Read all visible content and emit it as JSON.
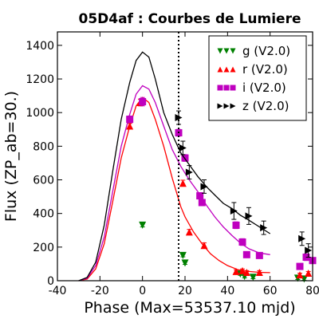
{
  "chart_data": {
    "type": "scatter",
    "title": "05D4af : Courbes de Lumiere",
    "xlabel": "Phase (Max=53537.10 mjd)",
    "ylabel": "Flux (ZP_ab=30.)",
    "xlim": [
      -40,
      80
    ],
    "ylim": [
      0,
      1480
    ],
    "xticks": [
      -40,
      -20,
      0,
      20,
      40,
      60,
      80
    ],
    "yticks": [
      0,
      200,
      400,
      600,
      800,
      1000,
      1200,
      1400
    ],
    "grid": false,
    "legend_position": "top-right",
    "vertical_marker_x": 17,
    "series": [
      {
        "name": "g (V2.0)",
        "color": "#008000",
        "marker": "triangle-down",
        "points": [
          [
            0,
            330,
            10
          ],
          [
            19,
            150,
            8
          ],
          [
            20,
            105,
            8
          ],
          [
            46,
            40,
            8
          ],
          [
            48,
            25,
            8
          ],
          [
            52,
            20,
            8
          ],
          [
            73,
            15,
            8
          ],
          [
            76,
            10,
            8
          ]
        ],
        "curve": []
      },
      {
        "name": "r (V2.0)",
        "color": "#ff0000",
        "marker": "triangle-up",
        "points": [
          [
            -6,
            920,
            15
          ],
          [
            -1,
            1060,
            20
          ],
          [
            19,
            580,
            18
          ],
          [
            22,
            290,
            15
          ],
          [
            29,
            210,
            15
          ],
          [
            44,
            55,
            10
          ],
          [
            47,
            60,
            10
          ],
          [
            49,
            50,
            10
          ],
          [
            55,
            50,
            10
          ],
          [
            74,
            35,
            10
          ],
          [
            78,
            45,
            10
          ]
        ],
        "curve": [
          [
            -30,
            0
          ],
          [
            -26,
            10
          ],
          [
            -22,
            70
          ],
          [
            -18,
            220
          ],
          [
            -14,
            470
          ],
          [
            -10,
            730
          ],
          [
            -6,
            920
          ],
          [
            -3,
            1040
          ],
          [
            0,
            1090
          ],
          [
            3,
            1060
          ],
          [
            6,
            960
          ],
          [
            10,
            800
          ],
          [
            14,
            610
          ],
          [
            18,
            440
          ],
          [
            20,
            380
          ],
          [
            24,
            290
          ],
          [
            28,
            220
          ],
          [
            32,
            160
          ],
          [
            36,
            120
          ],
          [
            40,
            90
          ],
          [
            45,
            65
          ],
          [
            50,
            55
          ],
          [
            55,
            50
          ],
          [
            60,
            48
          ]
        ]
      },
      {
        "name": "i (V2.0)",
        "color": "#bf00bf",
        "marker": "square",
        "points": [
          [
            -6,
            960,
            20
          ],
          [
            0,
            1065,
            25
          ],
          [
            17,
            880,
            20
          ],
          [
            20,
            730,
            20
          ],
          [
            27,
            505,
            18
          ],
          [
            28,
            465,
            18
          ],
          [
            44,
            330,
            20
          ],
          [
            47,
            230,
            20
          ],
          [
            49,
            155,
            15
          ],
          [
            55,
            150,
            15
          ],
          [
            74,
            85,
            15
          ],
          [
            77,
            140,
            20
          ],
          [
            80,
            120,
            15
          ]
        ],
        "curve": [
          [
            -30,
            0
          ],
          [
            -26,
            15
          ],
          [
            -22,
            90
          ],
          [
            -18,
            260
          ],
          [
            -14,
            530
          ],
          [
            -10,
            800
          ],
          [
            -6,
            990
          ],
          [
            -3,
            1110
          ],
          [
            0,
            1160
          ],
          [
            3,
            1140
          ],
          [
            6,
            1060
          ],
          [
            10,
            920
          ],
          [
            14,
            780
          ],
          [
            18,
            680
          ],
          [
            22,
            600
          ],
          [
            26,
            530
          ],
          [
            30,
            450
          ],
          [
            34,
            380
          ],
          [
            38,
            320
          ],
          [
            42,
            270
          ],
          [
            46,
            225
          ],
          [
            50,
            190
          ],
          [
            55,
            165
          ],
          [
            60,
            155
          ]
        ]
      },
      {
        "name": "z (V2.0)",
        "color": "#000000",
        "marker": "triangle-right",
        "points": [
          [
            17,
            970,
            40
          ],
          [
            19,
            790,
            40
          ],
          [
            22,
            645,
            40
          ],
          [
            29,
            560,
            40
          ],
          [
            43,
            415,
            50
          ],
          [
            50,
            385,
            50
          ],
          [
            57,
            315,
            40
          ],
          [
            75,
            250,
            40
          ],
          [
            78,
            180,
            40
          ]
        ],
        "curve": [
          [
            -30,
            0
          ],
          [
            -26,
            20
          ],
          [
            -22,
            110
          ],
          [
            -18,
            330
          ],
          [
            -14,
            650
          ],
          [
            -10,
            960
          ],
          [
            -6,
            1180
          ],
          [
            -3,
            1310
          ],
          [
            0,
            1360
          ],
          [
            3,
            1330
          ],
          [
            6,
            1200
          ],
          [
            10,
            1000
          ],
          [
            14,
            870
          ],
          [
            18,
            760
          ],
          [
            22,
            690
          ],
          [
            26,
            620
          ],
          [
            30,
            560
          ],
          [
            34,
            510
          ],
          [
            38,
            460
          ],
          [
            42,
            430
          ],
          [
            46,
            390
          ],
          [
            50,
            360
          ],
          [
            55,
            320
          ],
          [
            60,
            280
          ]
        ]
      }
    ]
  }
}
